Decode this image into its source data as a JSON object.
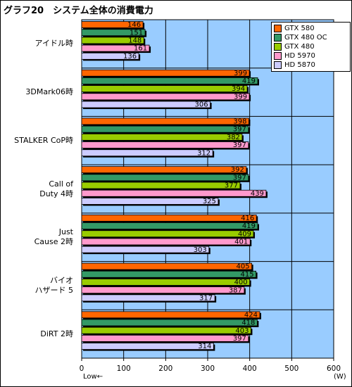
{
  "chart_data": {
    "type": "bar",
    "orientation": "horizontal",
    "title": "グラフ20　システム全体の消費電力",
    "unit_label": "(W)",
    "axis_note": "Low←",
    "xlim": [
      0,
      600
    ],
    "x_ticks": [
      0,
      100,
      200,
      300,
      400,
      500,
      600
    ],
    "grid": true,
    "legend_position": "top-right",
    "categories": [
      [
        "アイドル時"
      ],
      [
        "3DMark06時"
      ],
      [
        "STALKER CoP時"
      ],
      [
        "Call of",
        "Duty 4時"
      ],
      [
        "Just",
        "Cause 2時"
      ],
      [
        "バイオ",
        "ハザード 5"
      ],
      [
        "DiRT 2時"
      ]
    ],
    "series": [
      {
        "name": "GTX 580",
        "color": "#ff6600",
        "values": [
          146,
          399,
          398,
          392,
          416,
          405,
          424
        ]
      },
      {
        "name": "GTX 480 OC",
        "color": "#339966",
        "values": [
          151,
          419,
          397,
          397,
          419,
          415,
          418
        ]
      },
      {
        "name": "GTX 480",
        "color": "#99cc00",
        "values": [
          148,
          394,
          382,
          377,
          409,
          400,
          403
        ]
      },
      {
        "name": "HD 5970",
        "color": "#ff99cc",
        "values": [
          161,
          399,
          397,
          439,
          401,
          387,
          397
        ]
      },
      {
        "name": "HD 5870",
        "color": "#ccccff",
        "values": [
          136,
          306,
          312,
          325,
          303,
          317,
          314
        ]
      }
    ]
  },
  "colors": {
    "plot_background": "#99ccff",
    "gridline": "#000000"
  }
}
